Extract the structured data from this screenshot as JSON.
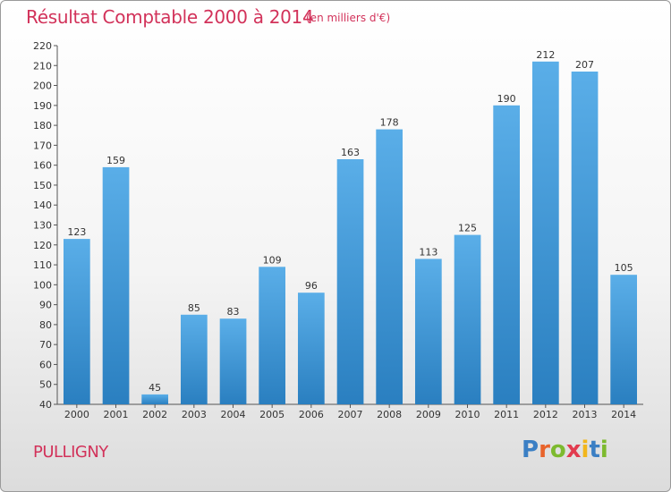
{
  "title": "Résultat Comptable 2000 à 2014",
  "subtitle": "(en milliers d'€)",
  "town": "PULLIGNY",
  "logo": {
    "letters": [
      "P",
      "r",
      "o",
      "x",
      "i",
      "t",
      "i"
    ],
    "colors": [
      "#3b7fc4",
      "#e8632b",
      "#7dba2f",
      "#e23b4f",
      "#f2b61c",
      "#3b7fc4",
      "#7dba2f"
    ]
  },
  "colors": {
    "bar_top": "#5aaee8",
    "bar_bottom": "#2a7fc0",
    "title": "#d2325a"
  },
  "chart_data": {
    "type": "bar",
    "title": "Résultat Comptable 2000 à 2014",
    "subtitle": "(en milliers d'€)",
    "categories": [
      "2000",
      "2001",
      "2002",
      "2003",
      "2004",
      "2005",
      "2006",
      "2007",
      "2008",
      "2009",
      "2010",
      "2011",
      "2012",
      "2013",
      "2014"
    ],
    "values": [
      123,
      159,
      45,
      85,
      83,
      109,
      96,
      163,
      178,
      113,
      125,
      190,
      212,
      207,
      105
    ],
    "ylim": [
      40,
      220
    ],
    "yticks": [
      40,
      50,
      60,
      70,
      80,
      90,
      100,
      110,
      120,
      130,
      140,
      150,
      160,
      170,
      180,
      190,
      200,
      210,
      220
    ],
    "grid": false,
    "xlabel": "",
    "ylabel": ""
  }
}
